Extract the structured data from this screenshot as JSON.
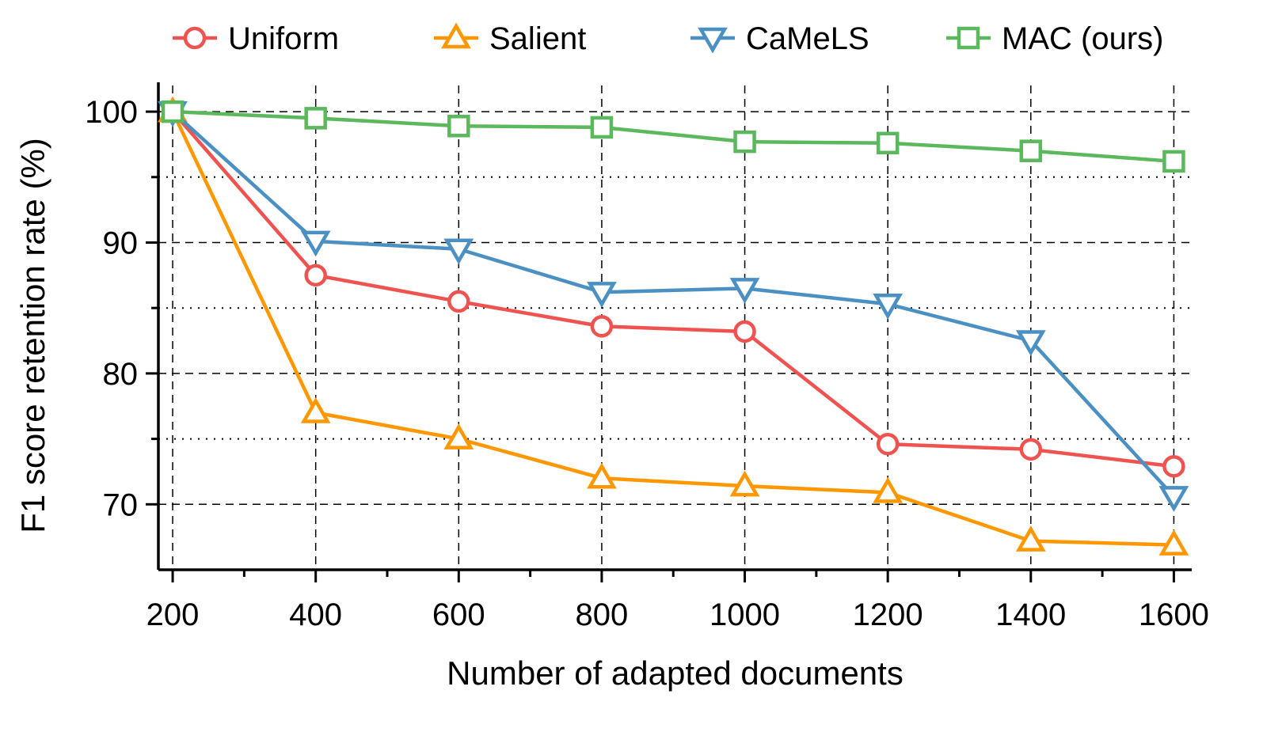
{
  "chart_data": {
    "type": "line",
    "title": "",
    "xlabel": "Number of adapted documents",
    "ylabel": "F1 score retention rate (%)",
    "x": [
      200,
      400,
      600,
      800,
      1000,
      1200,
      1400,
      1600
    ],
    "xlim": [
      180,
      1625
    ],
    "ylim": [
      65,
      102
    ],
    "x_ticks": [
      200,
      400,
      600,
      800,
      1000,
      1200,
      1400,
      1600
    ],
    "x_minor_ticks": [
      300,
      500,
      700,
      900,
      1100,
      1300,
      1500
    ],
    "y_ticks": [
      70,
      80,
      90,
      100
    ],
    "y_minor_ticks": [
      75,
      85,
      95
    ],
    "grid": true,
    "legend_position": "top",
    "series": [
      {
        "name": "Uniform",
        "color": "#ef5350",
        "marker": "circle",
        "values": [
          100,
          87.5,
          85.5,
          83.6,
          83.2,
          74.6,
          74.2,
          72.9
        ]
      },
      {
        "name": "Salient",
        "color": "#ff9800",
        "marker": "triangle-up",
        "values": [
          100,
          77.0,
          75.0,
          72.0,
          71.4,
          70.9,
          67.2,
          66.9
        ]
      },
      {
        "name": "CaMeLS",
        "color": "#4a90c2",
        "marker": "triangle-down",
        "values": [
          100,
          90.1,
          89.5,
          86.2,
          86.5,
          85.3,
          82.5,
          70.6
        ]
      },
      {
        "name": "MAC (ours)",
        "color": "#5cb85c",
        "marker": "square",
        "values": [
          100,
          99.5,
          98.9,
          98.8,
          97.7,
          97.6,
          97.0,
          96.2
        ]
      }
    ]
  }
}
